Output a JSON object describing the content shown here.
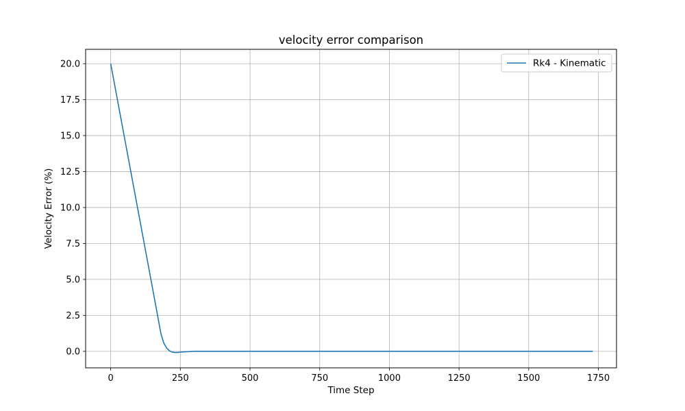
{
  "chart_data": {
    "type": "line",
    "title": "velocity error comparison",
    "xlabel": "Time Step",
    "ylabel": "Velocity Error (%)",
    "xlim": [
      -90,
      1815
    ],
    "ylim": [
      -1.15,
      21.0
    ],
    "xticks": [
      0,
      250,
      500,
      750,
      1000,
      1250,
      1500,
      1750
    ],
    "xtick_labels": [
      "0",
      "250",
      "500",
      "750",
      "1000",
      "1250",
      "1500",
      "1750"
    ],
    "yticks": [
      0.0,
      2.5,
      5.0,
      7.5,
      10.0,
      12.5,
      15.0,
      17.5,
      20.0
    ],
    "ytick_labels": [
      "0.0",
      "2.5",
      "5.0",
      "7.5",
      "10.0",
      "12.5",
      "15.0",
      "17.5",
      "20.0"
    ],
    "grid": true,
    "legend_position": "top-right",
    "series": [
      {
        "name": "Rk4 - Kinematic",
        "color": "#1f77b4",
        "x": [
          0,
          50,
          100,
          150,
          170,
          180,
          190,
          200,
          210,
          220,
          230,
          240,
          250,
          260,
          280,
          300,
          400,
          600,
          800,
          1000,
          1200,
          1400,
          1600,
          1730
        ],
        "y": [
          20.0,
          14.8,
          9.6,
          4.4,
          2.3,
          1.25,
          0.6,
          0.25,
          0.05,
          -0.05,
          -0.08,
          -0.08,
          -0.06,
          -0.04,
          -0.02,
          0.0,
          0.0,
          0.0,
          0.0,
          0.0,
          0.0,
          0.0,
          0.0,
          0.0
        ]
      }
    ]
  }
}
